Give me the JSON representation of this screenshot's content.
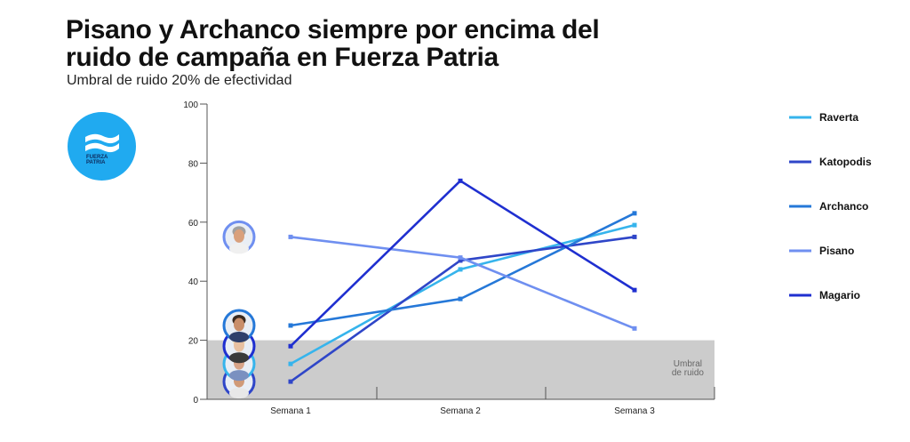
{
  "header": {
    "title": "Pisano y Archanco siempre por encima del ruido de campaña en Fuerza Patria",
    "subtitle": "Umbral de ruido 20% de efectividad"
  },
  "logo": {
    "text": "FUERZA\nPATRIA",
    "color": "#20aaf0",
    "icon": "fuerza-patria-waves-logo"
  },
  "chart_data": {
    "type": "line",
    "title": "Pisano y Archanco siempre por encima del ruido de campaña en Fuerza Patria",
    "subtitle": "Umbral de ruido 20% de efectividad",
    "categories": [
      "Semana 1",
      "Semana 2",
      "Semana 3"
    ],
    "ylim": [
      0,
      100
    ],
    "yticks": [
      0,
      20,
      40,
      60,
      80,
      100
    ],
    "grid": false,
    "legend_position": "right",
    "threshold": {
      "value": 20,
      "label": "Umbral de ruido",
      "color": "#cccccc"
    },
    "series": [
      {
        "name": "Raverta",
        "color": "#36b4ec",
        "values": [
          12,
          44,
          59
        ]
      },
      {
        "name": "Katopodis",
        "color": "#2f46c8",
        "values": [
          6,
          47,
          55
        ]
      },
      {
        "name": "Archanco",
        "color": "#2578d8",
        "values": [
          25,
          34,
          63
        ]
      },
      {
        "name": "Pisano",
        "color": "#6f8ff0",
        "values": [
          55,
          48,
          24
        ]
      },
      {
        "name": "Magario",
        "color": "#1f2fd0",
        "values": [
          18,
          74,
          37
        ]
      }
    ]
  },
  "avatars": [
    {
      "series": "Pisano",
      "ring": "#6f8ff0",
      "skin": "#d9a07c",
      "hair": "#a0a0a0",
      "shirt": "#f0f0f0"
    },
    {
      "series": "Archanco",
      "ring": "#2578d8",
      "skin": "#c98e6a",
      "hair": "#3a2a20",
      "shirt": "#2f3f6a"
    },
    {
      "series": "Magario",
      "ring": "#1f2fd0",
      "skin": "#e8c0a0",
      "hair": "#f0e6c8",
      "shirt": "#3a3a3a"
    },
    {
      "series": "Raverta",
      "ring": "#36b4ec",
      "skin": "#d8a488",
      "hair": "#5a3a28",
      "shirt": "#7a90c0"
    },
    {
      "series": "Katopodis",
      "ring": "#2f46c8",
      "skin": "#d09a78",
      "hair": "#4a3a30",
      "shirt": "#e8e8e8"
    }
  ]
}
